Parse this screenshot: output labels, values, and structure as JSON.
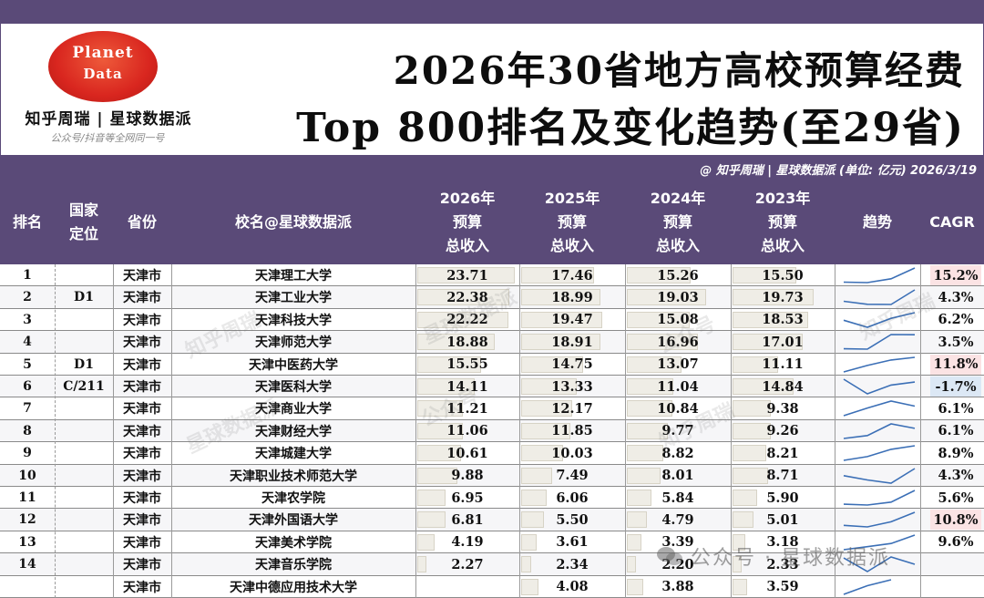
{
  "logo": {
    "line1": "Planet",
    "line2": "Data"
  },
  "brand": "知乎周瑞 | 星球数据派",
  "brand_sub": "公众号/抖音等全网同一号",
  "title": {
    "line1": "2026年30省地方高校预算经费",
    "line2": "Top 800排名及变化趋势(至29省)"
  },
  "info_line": "@ 知乎周瑞 | 星球数据派  (单位: 亿元)  2026/3/19",
  "watermark": "公众号 · 星球数据派",
  "diag_watermarks": [
    "知乎周瑞",
    "星球数据派",
    "公众号"
  ],
  "headers": {
    "rank": "排名",
    "national": [
      "国家",
      "定位"
    ],
    "province": "省份",
    "school": "校名@星球数据派",
    "y2026": [
      "2026年",
      "预算",
      "总收入"
    ],
    "y2025": [
      "2025年",
      "预算",
      "总收入"
    ],
    "y2024": [
      "2024年",
      "预算",
      "总收入"
    ],
    "y2023": [
      "2023年",
      "预算",
      "总收入"
    ],
    "trend": "趋势",
    "cagr": "CAGR"
  },
  "colors": {
    "header_bg": "#5a4a78",
    "bar_fill": "#efede6",
    "spark": "#3b6fb6",
    "cagr_pos": "#fbe3e4",
    "cagr_neg": "#dce8f5"
  },
  "rows": [
    {
      "rank": "1",
      "national": "",
      "province": "天津市",
      "school": "天津理工大学",
      "v2026": 23.71,
      "v2025": 17.46,
      "v2024": 15.26,
      "v2023": 15.5,
      "cagr": "15.2%",
      "cagr_value": 15.2
    },
    {
      "rank": "2",
      "national": "D1",
      "province": "天津市",
      "school": "天津工业大学",
      "v2026": 22.38,
      "v2025": 18.99,
      "v2024": 19.03,
      "v2023": 19.73,
      "cagr": "4.3%",
      "cagr_value": 4.3
    },
    {
      "rank": "3",
      "national": "",
      "province": "天津市",
      "school": "天津科技大学",
      "v2026": 22.22,
      "v2025": 19.47,
      "v2024": 15.08,
      "v2023": 18.53,
      "cagr": "6.2%",
      "cagr_value": 6.2
    },
    {
      "rank": "4",
      "national": "",
      "province": "天津市",
      "school": "天津师范大学",
      "v2026": 18.88,
      "v2025": 18.91,
      "v2024": 16.96,
      "v2023": 17.01,
      "cagr": "3.5%",
      "cagr_value": 3.5
    },
    {
      "rank": "5",
      "national": "D1",
      "province": "天津市",
      "school": "天津中医药大学",
      "v2026": 15.55,
      "v2025": 14.75,
      "v2024": 13.07,
      "v2023": 11.11,
      "cagr": "11.8%",
      "cagr_value": 11.8
    },
    {
      "rank": "6",
      "national": "C/211",
      "province": "天津市",
      "school": "天津医科大学",
      "v2026": 14.11,
      "v2025": 13.33,
      "v2024": 11.04,
      "v2023": 14.84,
      "cagr": "-1.7%",
      "cagr_value": -1.7
    },
    {
      "rank": "7",
      "national": "",
      "province": "天津市",
      "school": "天津商业大学",
      "v2026": 11.21,
      "v2025": 12.17,
      "v2024": 10.84,
      "v2023": 9.38,
      "cagr": "6.1%",
      "cagr_value": 6.1
    },
    {
      "rank": "8",
      "national": "",
      "province": "天津市",
      "school": "天津财经大学",
      "v2026": 11.06,
      "v2025": 11.85,
      "v2024": 9.77,
      "v2023": 9.26,
      "cagr": "6.1%",
      "cagr_value": 6.1
    },
    {
      "rank": "9",
      "national": "",
      "province": "天津市",
      "school": "天津城建大学",
      "v2026": 10.61,
      "v2025": 10.03,
      "v2024": 8.82,
      "v2023": 8.21,
      "cagr": "8.9%",
      "cagr_value": 8.9
    },
    {
      "rank": "10",
      "national": "",
      "province": "天津市",
      "school": "天津职业技术师范大学",
      "v2026": 9.88,
      "v2025": 7.49,
      "v2024": 8.01,
      "v2023": 8.71,
      "cagr": "4.3%",
      "cagr_value": 4.3
    },
    {
      "rank": "11",
      "national": "",
      "province": "天津市",
      "school": "天津农学院",
      "v2026": 6.95,
      "v2025": 6.06,
      "v2024": 5.84,
      "v2023": 5.9,
      "cagr": "5.6%",
      "cagr_value": 5.6
    },
    {
      "rank": "12",
      "national": "",
      "province": "天津市",
      "school": "天津外国语大学",
      "v2026": 6.81,
      "v2025": 5.5,
      "v2024": 4.79,
      "v2023": 5.01,
      "cagr": "10.8%",
      "cagr_value": 10.8
    },
    {
      "rank": "13",
      "national": "",
      "province": "天津市",
      "school": "天津美术学院",
      "v2026": 4.19,
      "v2025": 3.61,
      "v2024": 3.39,
      "v2023": 3.18,
      "cagr": "9.6%",
      "cagr_value": 9.6
    },
    {
      "rank": "14",
      "national": "",
      "province": "天津市",
      "school": "天津音乐学院",
      "v2026": 2.27,
      "v2025": 2.34,
      "v2024": 2.2,
      "v2023": 2.33,
      "cagr": "",
      "cagr_value": null
    },
    {
      "rank": "",
      "national": "",
      "province": "天津市",
      "school": "天津中德应用技术大学",
      "v2026": null,
      "v2025": 4.08,
      "v2024": 3.88,
      "v2023": 3.59,
      "cagr": "",
      "cagr_value": null
    }
  ]
}
